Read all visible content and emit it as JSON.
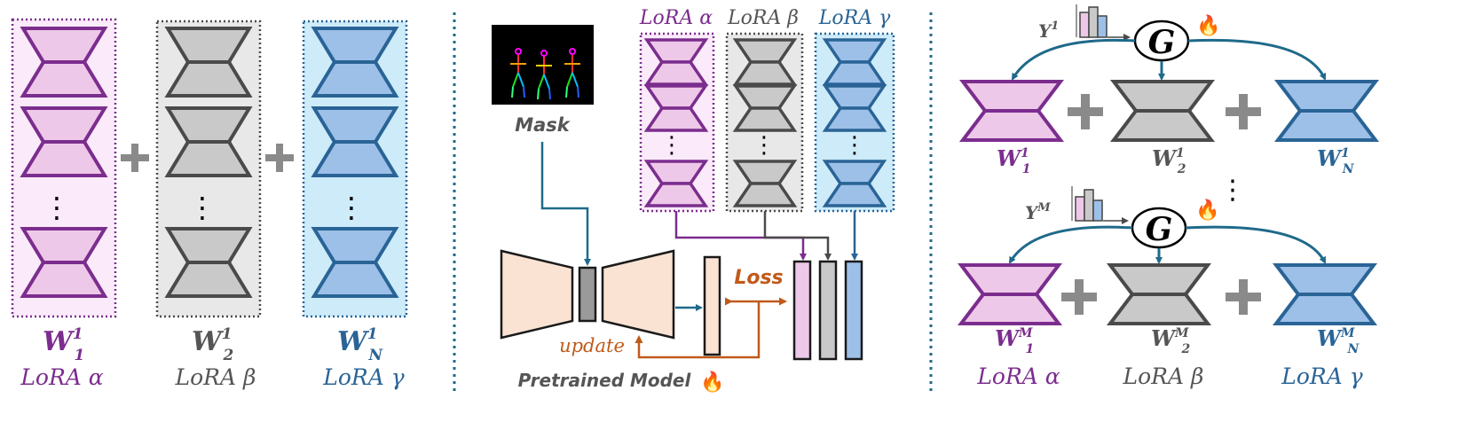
{
  "colors": {
    "purple": "#7B2D8E",
    "purple_fill": "#EEC8E8",
    "purple_bg": "#FBEBFA",
    "gray": "#4A4A4A",
    "gray_fill": "#C9C9C9",
    "gray_bg": "#E8E8E8",
    "blue": "#2A6496",
    "blue_fill": "#9DC0E8",
    "blue_bg": "#CDEBF9",
    "teal_arrow": "#1F6A8A",
    "orange": "#C05A1A",
    "peach": "#FAE3D3",
    "plus": "#8A8A8A"
  },
  "left_panel": {
    "columns": [
      {
        "weight_base": "W",
        "weight_sub": "1",
        "weight_sup": "1",
        "lora_label": "LoRA α"
      },
      {
        "weight_base": "W",
        "weight_sub": "2",
        "weight_sup": "1",
        "lora_label": "LoRA β"
      },
      {
        "weight_base": "W",
        "weight_sub": "N",
        "weight_sup": "1",
        "lora_label": "LoRA γ"
      }
    ],
    "ellipsis": "⋮"
  },
  "middle_panel": {
    "mask_label": "Mask",
    "lora_headers": [
      "LoRA α",
      "LoRA β",
      "LoRA γ"
    ],
    "loss_label": "Loss",
    "update_label": "update",
    "model_label": "Pretrained Model",
    "fire_icon": "🔥"
  },
  "right_panel": {
    "top": {
      "gamma_base": "Υ",
      "gamma_sup": "1",
      "gate_label": "G",
      "fire_icon": "🔥",
      "weights": [
        {
          "base": "W",
          "sub": "1",
          "sup": "1"
        },
        {
          "base": "W",
          "sub": "2",
          "sup": "1"
        },
        {
          "base": "W",
          "sub": "N",
          "sup": "1"
        }
      ]
    },
    "bottom": {
      "gamma_base": "Υ",
      "gamma_sup": "M",
      "gate_label": "G",
      "fire_icon": "🔥",
      "weights": [
        {
          "base": "W",
          "sub": "1",
          "sup": "M"
        },
        {
          "base": "W",
          "sub": "2",
          "sup": "M"
        },
        {
          "base": "W",
          "sub": "N",
          "sup": "M"
        }
      ],
      "lora_labels": [
        "LoRA α",
        "LoRA β",
        "LoRA γ"
      ]
    },
    "ellipsis": "⋮"
  }
}
